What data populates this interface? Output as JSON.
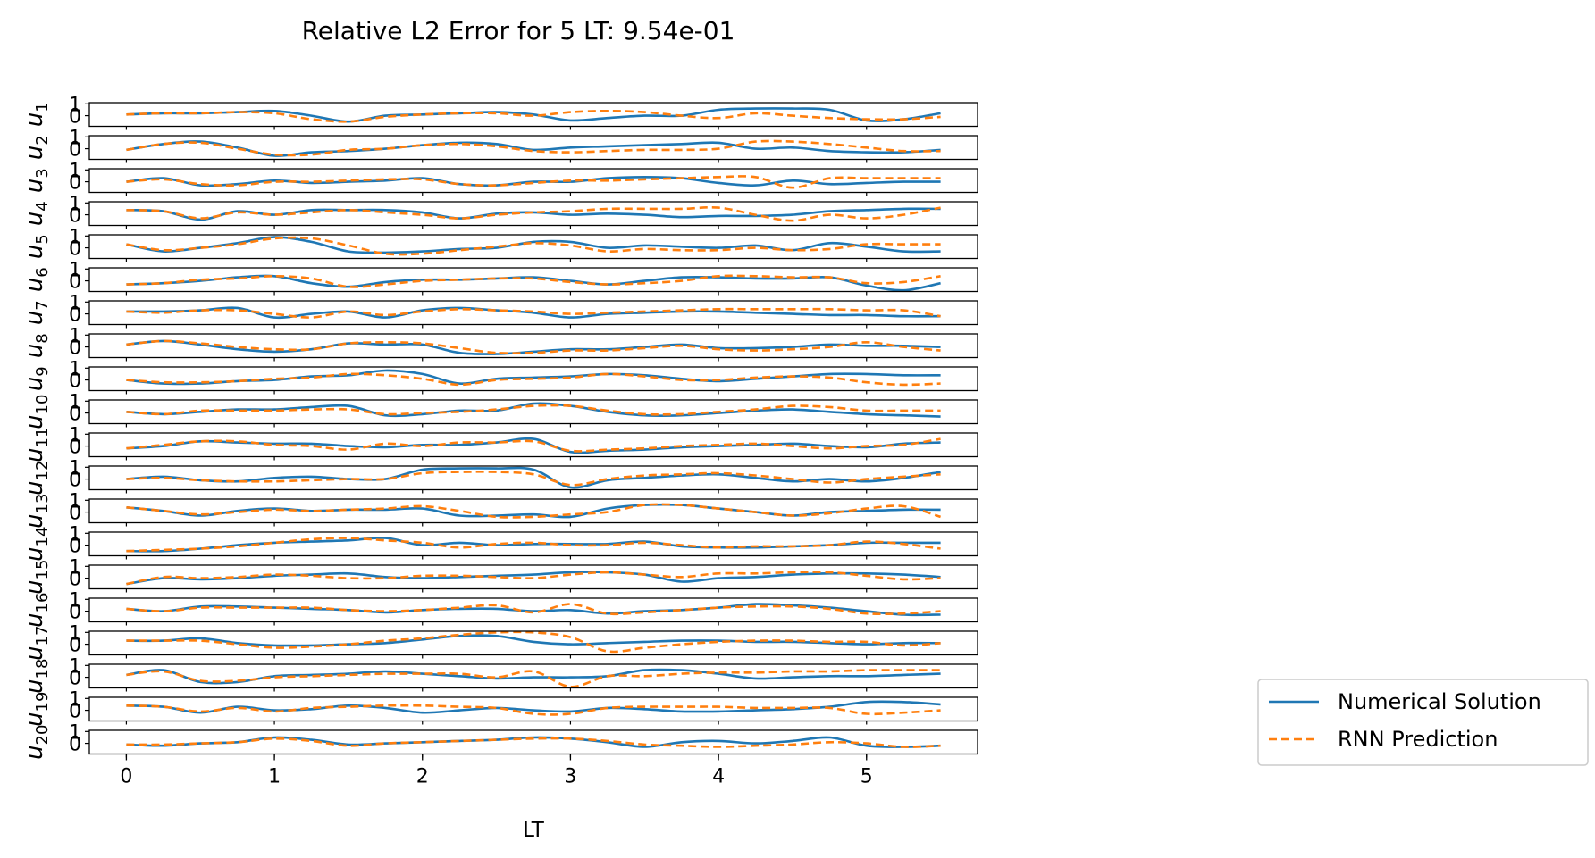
{
  "chart_data": {
    "type": "line",
    "title": "Relative L2 Error for 5 LT: 9.54e-01",
    "xlabel": "LT",
    "xlim": [
      -0.25,
      5.75
    ],
    "x_ticks": [
      "0",
      "1",
      "2",
      "3",
      "4",
      "5"
    ],
    "ylim": [
      -0.9,
      1.1
    ],
    "y_ticks": [
      "0",
      "1"
    ],
    "legend": {
      "placement": "right",
      "entries": [
        {
          "name": "Numerical Solution",
          "color": "#1f77b4",
          "style": "solid"
        },
        {
          "name": "RNN Prediction",
          "color": "#ff7f0e",
          "style": "dashed"
        }
      ]
    },
    "x": [
      0,
      0.25,
      0.5,
      0.75,
      1,
      1.25,
      1.5,
      1.75,
      2,
      2.25,
      2.5,
      2.75,
      3,
      3.25,
      3.5,
      3.75,
      4,
      4.25,
      4.5,
      4.75,
      5,
      5.25,
      5.5
    ],
    "panels": [
      {
        "ylabel": "u_1",
        "numerical": [
          0.1,
          0.2,
          0.2,
          0.3,
          0.4,
          0.0,
          -0.5,
          0.0,
          0.1,
          0.2,
          0.3,
          0.1,
          -0.4,
          -0.2,
          0.0,
          0.0,
          0.5,
          0.6,
          0.6,
          0.5,
          -0.4,
          -0.3,
          0.2
        ],
        "prediction": [
          0.1,
          0.2,
          0.2,
          0.3,
          0.2,
          -0.3,
          -0.5,
          -0.1,
          0.1,
          0.2,
          0.2,
          0.0,
          0.3,
          0.4,
          0.3,
          0.0,
          -0.2,
          0.2,
          0.0,
          -0.2,
          -0.3,
          -0.3,
          -0.1
        ]
      },
      {
        "ylabel": "u_2",
        "numerical": [
          -0.1,
          0.4,
          0.6,
          0.1,
          -0.6,
          -0.3,
          -0.2,
          0.0,
          0.3,
          0.5,
          0.4,
          -0.1,
          0.1,
          0.2,
          0.3,
          0.4,
          0.5,
          0.0,
          0.1,
          -0.2,
          -0.3,
          -0.3,
          -0.1
        ],
        "prediction": [
          -0.1,
          0.4,
          0.5,
          0.0,
          -0.5,
          -0.5,
          -0.1,
          0.0,
          0.3,
          0.4,
          0.2,
          -0.2,
          -0.3,
          -0.2,
          -0.1,
          -0.1,
          0.0,
          0.6,
          0.6,
          0.4,
          0.1,
          -0.2,
          -0.2
        ]
      },
      {
        "ylabel": "u_3",
        "numerical": [
          0.0,
          0.3,
          -0.3,
          -0.2,
          0.1,
          -0.1,
          0.0,
          0.1,
          0.3,
          -0.2,
          -0.3,
          0.0,
          0.0,
          0.3,
          0.4,
          0.3,
          -0.1,
          -0.3,
          0.1,
          -0.2,
          -0.1,
          0.0,
          0.0
        ],
        "prediction": [
          0.0,
          0.2,
          -0.2,
          -0.3,
          0.0,
          0.0,
          0.1,
          0.2,
          0.2,
          -0.2,
          -0.3,
          -0.1,
          0.1,
          0.1,
          0.2,
          0.3,
          0.4,
          0.4,
          -0.5,
          0.3,
          0.3,
          0.3,
          0.3
        ]
      },
      {
        "ylabel": "u_4",
        "numerical": [
          0.4,
          0.3,
          -0.4,
          0.3,
          0.0,
          0.4,
          0.4,
          0.4,
          0.2,
          -0.3,
          0.1,
          0.2,
          0.0,
          0.1,
          0.0,
          -0.2,
          -0.1,
          -0.1,
          0.0,
          0.3,
          0.4,
          0.5,
          0.5
        ],
        "prediction": [
          0.4,
          0.3,
          -0.3,
          0.2,
          0.0,
          0.2,
          0.4,
          0.2,
          0.0,
          -0.3,
          0.0,
          0.2,
          0.3,
          0.5,
          0.5,
          0.5,
          0.6,
          0.0,
          -0.5,
          0.0,
          -0.3,
          0.0,
          0.6
        ]
      },
      {
        "ylabel": "u_5",
        "numerical": [
          0.3,
          -0.3,
          0.0,
          0.4,
          0.9,
          0.5,
          -0.3,
          -0.4,
          -0.3,
          -0.1,
          0.0,
          0.5,
          0.5,
          0.0,
          0.2,
          0.1,
          0.0,
          0.2,
          -0.2,
          0.4,
          0.1,
          -0.3,
          -0.3
        ],
        "prediction": [
          0.3,
          -0.2,
          0.0,
          0.3,
          0.8,
          0.8,
          0.2,
          -0.5,
          -0.5,
          -0.2,
          0.1,
          0.4,
          0.2,
          -0.3,
          -0.1,
          -0.2,
          -0.2,
          0.0,
          -0.2,
          -0.1,
          0.3,
          0.3,
          0.3
        ]
      },
      {
        "ylabel": "u_6",
        "numerical": [
          -0.3,
          -0.2,
          0.0,
          0.3,
          0.4,
          -0.2,
          -0.5,
          -0.1,
          0.1,
          0.1,
          0.2,
          0.3,
          0.0,
          -0.3,
          0.0,
          0.3,
          0.3,
          0.2,
          0.2,
          0.3,
          -0.4,
          -0.8,
          -0.2
        ],
        "prediction": [
          -0.3,
          -0.2,
          0.1,
          0.2,
          0.4,
          0.2,
          -0.5,
          -0.3,
          0.0,
          0.1,
          0.2,
          0.2,
          -0.1,
          -0.3,
          -0.2,
          0.0,
          0.4,
          0.4,
          0.3,
          0.3,
          -0.2,
          -0.1,
          0.4
        ]
      },
      {
        "ylabel": "u_7",
        "numerical": [
          0.2,
          0.2,
          0.3,
          0.5,
          -0.3,
          0.0,
          0.2,
          -0.3,
          0.3,
          0.5,
          0.3,
          0.1,
          -0.3,
          0.0,
          0.1,
          0.2,
          0.2,
          0.1,
          0.0,
          -0.1,
          -0.1,
          -0.2,
          -0.2
        ],
        "prediction": [
          0.2,
          0.1,
          0.3,
          0.3,
          0.0,
          -0.3,
          0.2,
          -0.1,
          0.2,
          0.4,
          0.3,
          0.2,
          0.0,
          0.1,
          0.2,
          0.3,
          0.4,
          0.4,
          0.4,
          0.4,
          0.3,
          0.3,
          -0.2
        ]
      },
      {
        "ylabel": "u_8",
        "numerical": [
          0.2,
          0.5,
          0.2,
          -0.2,
          -0.4,
          -0.2,
          0.3,
          0.2,
          0.2,
          -0.5,
          -0.6,
          -0.4,
          -0.2,
          -0.2,
          0.0,
          0.2,
          -0.1,
          -0.1,
          0.0,
          0.2,
          0.1,
          0.1,
          0.0
        ],
        "prediction": [
          0.2,
          0.5,
          0.3,
          0.0,
          -0.2,
          -0.2,
          0.3,
          0.4,
          0.3,
          -0.1,
          -0.5,
          -0.5,
          -0.3,
          -0.3,
          -0.1,
          0.1,
          -0.2,
          -0.3,
          -0.2,
          0.0,
          0.4,
          0.0,
          -0.3
        ]
      },
      {
        "ylabel": "u_9",
        "numerical": [
          0.0,
          -0.3,
          -0.3,
          -0.1,
          0.0,
          0.3,
          0.4,
          0.8,
          0.5,
          -0.3,
          0.1,
          0.2,
          0.3,
          0.5,
          0.4,
          0.1,
          -0.1,
          0.1,
          0.3,
          0.5,
          0.5,
          0.4,
          0.4
        ],
        "prediction": [
          0.0,
          -0.2,
          -0.2,
          -0.1,
          0.1,
          0.2,
          0.5,
          0.4,
          0.1,
          -0.4,
          0.0,
          0.1,
          0.2,
          0.5,
          0.3,
          0.0,
          0.0,
          0.2,
          0.3,
          0.2,
          -0.2,
          -0.4,
          -0.3
        ]
      },
      {
        "ylabel": "u_10",
        "numerical": [
          0.1,
          -0.1,
          0.1,
          0.3,
          0.3,
          0.5,
          0.6,
          -0.2,
          -0.1,
          0.2,
          0.2,
          0.8,
          0.6,
          0.1,
          -0.2,
          -0.2,
          0.0,
          0.2,
          0.3,
          0.1,
          -0.1,
          -0.2,
          -0.3
        ],
        "prediction": [
          0.1,
          -0.1,
          0.2,
          0.2,
          0.2,
          0.3,
          0.3,
          -0.1,
          0.0,
          0.1,
          0.3,
          0.6,
          0.6,
          0.2,
          -0.1,
          -0.1,
          0.1,
          0.3,
          0.6,
          0.5,
          0.2,
          0.2,
          0.2
        ]
      },
      {
        "ylabel": "u_11",
        "numerical": [
          -0.2,
          0.0,
          0.4,
          0.3,
          0.2,
          0.2,
          0.0,
          -0.1,
          0.1,
          0.1,
          0.3,
          0.6,
          -0.5,
          -0.4,
          -0.3,
          -0.1,
          0.0,
          0.1,
          0.2,
          0.0,
          -0.1,
          0.2,
          0.3
        ],
        "prediction": [
          -0.2,
          0.1,
          0.4,
          0.4,
          0.1,
          0.0,
          -0.3,
          0.2,
          0.0,
          0.3,
          0.3,
          0.4,
          -0.4,
          -0.3,
          -0.2,
          0.0,
          0.1,
          0.2,
          0.0,
          -0.2,
          0.0,
          0.1,
          0.6
        ]
      },
      {
        "ylabel": "u_12",
        "numerical": [
          0.0,
          0.2,
          -0.1,
          -0.2,
          0.1,
          0.2,
          0.0,
          0.0,
          0.8,
          0.9,
          0.9,
          0.8,
          -0.7,
          -0.1,
          0.1,
          0.3,
          0.4,
          0.1,
          -0.2,
          0.0,
          -0.2,
          0.1,
          0.6
        ],
        "prediction": [
          0.0,
          0.1,
          -0.1,
          -0.2,
          -0.2,
          -0.1,
          0.0,
          0.0,
          0.5,
          0.6,
          0.6,
          0.4,
          -0.5,
          0.0,
          0.3,
          0.4,
          0.5,
          0.3,
          0.0,
          -0.3,
          0.0,
          0.2,
          0.4
        ]
      },
      {
        "ylabel": "u_13",
        "numerical": [
          0.4,
          0.1,
          -0.3,
          0.1,
          0.3,
          0.1,
          0.2,
          0.2,
          0.3,
          -0.3,
          -0.3,
          -0.2,
          -0.4,
          0.3,
          0.6,
          0.6,
          0.3,
          0.0,
          -0.3,
          0.0,
          0.1,
          0.2,
          0.2
        ],
        "prediction": [
          0.4,
          0.1,
          -0.2,
          0.0,
          0.2,
          0.1,
          0.2,
          0.3,
          0.5,
          0.1,
          -0.4,
          -0.4,
          -0.2,
          0.0,
          0.6,
          0.6,
          0.3,
          0.0,
          -0.3,
          -0.1,
          0.3,
          0.5,
          -0.4
        ]
      },
      {
        "ylabel": "u_14",
        "numerical": [
          -0.5,
          -0.5,
          -0.3,
          0.0,
          0.2,
          0.3,
          0.4,
          0.6,
          0.0,
          0.2,
          0.0,
          0.1,
          0.1,
          0.1,
          0.3,
          -0.1,
          -0.2,
          -0.2,
          -0.1,
          0.0,
          0.2,
          0.2,
          0.2
        ],
        "prediction": [
          -0.5,
          -0.4,
          -0.3,
          -0.1,
          0.2,
          0.5,
          0.6,
          0.4,
          0.2,
          -0.2,
          0.1,
          0.2,
          0.0,
          0.0,
          0.2,
          0.0,
          -0.2,
          -0.1,
          -0.1,
          0.0,
          0.3,
          0.1,
          -0.3
        ]
      },
      {
        "ylabel": "u_15",
        "numerical": [
          -0.5,
          0.0,
          -0.1,
          0.0,
          0.2,
          0.3,
          0.4,
          0.1,
          0.0,
          0.1,
          0.2,
          0.3,
          0.5,
          0.5,
          0.3,
          -0.3,
          0.0,
          0.1,
          0.3,
          0.4,
          0.4,
          0.3,
          0.1
        ],
        "prediction": [
          -0.5,
          0.1,
          0.0,
          0.1,
          0.3,
          0.2,
          0.0,
          0.0,
          0.2,
          0.2,
          0.1,
          0.0,
          0.3,
          0.5,
          0.3,
          0.1,
          0.4,
          0.4,
          0.5,
          0.5,
          0.2,
          -0.1,
          0.0
        ]
      },
      {
        "ylabel": "u_16",
        "numerical": [
          0.2,
          0.0,
          0.4,
          0.4,
          0.3,
          0.2,
          0.1,
          -0.1,
          0.1,
          0.2,
          0.2,
          0.0,
          0.1,
          -0.2,
          0.0,
          0.1,
          0.3,
          0.6,
          0.5,
          0.3,
          0.0,
          -0.3,
          -0.3
        ],
        "prediction": [
          0.2,
          0.0,
          0.3,
          0.3,
          0.3,
          0.3,
          0.1,
          0.0,
          0.1,
          0.3,
          0.5,
          -0.1,
          0.6,
          -0.2,
          -0.1,
          0.1,
          0.3,
          0.4,
          0.4,
          0.2,
          -0.2,
          -0.2,
          0.0
        ]
      },
      {
        "ylabel": "u_17",
        "numerical": [
          0.3,
          0.3,
          0.5,
          0.1,
          -0.1,
          -0.1,
          0.0,
          0.1,
          0.4,
          0.7,
          0.7,
          0.2,
          0.0,
          0.1,
          0.2,
          0.3,
          0.3,
          0.2,
          0.2,
          0.1,
          0.0,
          0.1,
          0.1
        ],
        "prediction": [
          0.3,
          0.3,
          0.3,
          0.0,
          -0.3,
          -0.2,
          0.0,
          0.3,
          0.5,
          0.8,
          1.0,
          1.0,
          0.6,
          -0.6,
          -0.3,
          0.0,
          0.2,
          0.3,
          0.3,
          0.2,
          0.2,
          -0.1,
          0.1
        ]
      },
      {
        "ylabel": "u_18",
        "numerical": [
          0.2,
          0.6,
          -0.4,
          -0.4,
          0.1,
          0.2,
          0.3,
          0.5,
          0.3,
          0.1,
          -0.1,
          0.0,
          0.0,
          0.1,
          0.6,
          0.6,
          0.3,
          -0.1,
          0.0,
          0.1,
          0.1,
          0.2,
          0.3
        ],
        "prediction": [
          0.2,
          0.5,
          -0.3,
          -0.3,
          0.0,
          0.1,
          0.2,
          0.3,
          0.3,
          0.3,
          0.0,
          0.5,
          -0.8,
          0.1,
          0.1,
          0.3,
          0.4,
          0.4,
          0.5,
          0.5,
          0.6,
          0.6,
          0.6
        ]
      },
      {
        "ylabel": "u_19",
        "numerical": [
          0.4,
          0.3,
          -0.2,
          0.3,
          0.0,
          0.1,
          0.4,
          0.2,
          -0.2,
          0.0,
          0.2,
          0.0,
          -0.1,
          0.2,
          0.1,
          -0.1,
          -0.1,
          0.0,
          0.1,
          0.3,
          0.7,
          0.7,
          0.5
        ],
        "prediction": [
          0.4,
          0.3,
          -0.1,
          0.2,
          -0.1,
          0.2,
          0.3,
          0.4,
          0.4,
          0.3,
          0.2,
          -0.3,
          -0.3,
          0.2,
          0.3,
          0.3,
          0.3,
          0.2,
          0.2,
          0.2,
          -0.3,
          -0.2,
          0.0
        ]
      },
      {
        "ylabel": "u_20",
        "numerical": [
          -0.1,
          -0.2,
          0.0,
          0.1,
          0.5,
          0.3,
          -0.1,
          0.0,
          0.1,
          0.2,
          0.3,
          0.5,
          0.4,
          0.1,
          -0.3,
          0.1,
          0.2,
          0.0,
          0.2,
          0.5,
          -0.2,
          -0.3,
          -0.2
        ],
        "prediction": [
          -0.1,
          -0.1,
          0.0,
          0.1,
          0.4,
          0.2,
          -0.2,
          0.0,
          0.1,
          0.2,
          0.3,
          0.4,
          0.4,
          0.2,
          -0.1,
          -0.2,
          -0.3,
          -0.2,
          -0.1,
          0.1,
          0.0,
          -0.3,
          -0.2
        ]
      }
    ]
  }
}
